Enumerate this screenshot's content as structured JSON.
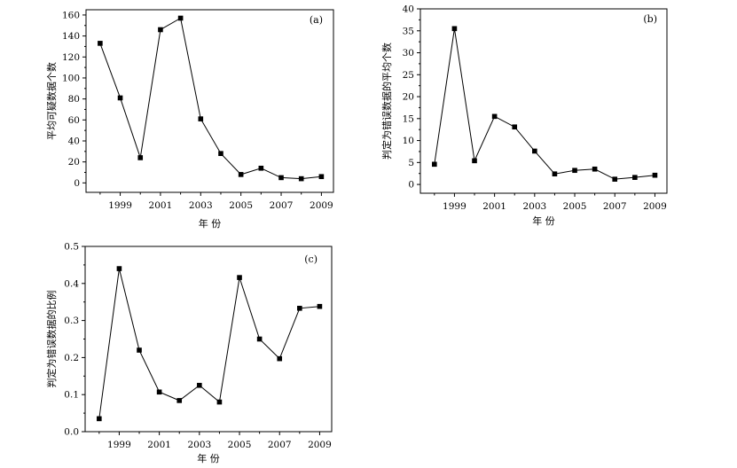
{
  "chart_data": [
    {
      "type": "line",
      "panel_label": "(a)",
      "title": "",
      "xlabel": "年  份",
      "ylabel": "平均可疑数据个数",
      "x": [
        1998,
        1999,
        2000,
        2001,
        2002,
        2003,
        2004,
        2005,
        2006,
        2007,
        2008,
        2009
      ],
      "values": [
        133,
        81,
        24,
        146,
        157,
        61,
        28,
        8,
        14,
        5,
        4,
        6
      ],
      "xlim": [
        1997.3,
        2009.6
      ],
      "ylim": [
        -9,
        165
      ],
      "xticks": [
        1999,
        2001,
        2003,
        2005,
        2007,
        2009
      ],
      "xtick_labels": [
        "1999",
        "2001",
        "2003",
        "2005",
        "2007",
        "2009"
      ],
      "yticks": [
        0,
        20,
        40,
        60,
        80,
        100,
        120,
        140,
        160
      ],
      "ytick_labels": [
        "0",
        "20",
        "40",
        "60",
        "80",
        "100",
        "120",
        "140",
        "160"
      ],
      "marker": "square",
      "grid": false
    },
    {
      "type": "line",
      "panel_label": "(b)",
      "title": "",
      "xlabel": "年  份",
      "ylabel": "判定为错误数据的平均个数",
      "x": [
        1998,
        1999,
        2000,
        2001,
        2002,
        2003,
        2004,
        2005,
        2006,
        2007,
        2008,
        2009
      ],
      "values": [
        4.6,
        35.5,
        5.4,
        15.5,
        13.1,
        7.6,
        2.4,
        3.2,
        3.5,
        1.2,
        1.6,
        2.1
      ],
      "xlim": [
        1997.3,
        2009.6
      ],
      "ylim": [
        -2,
        40
      ],
      "xticks": [
        1999,
        2001,
        2003,
        2005,
        2007,
        2009
      ],
      "xtick_labels": [
        "1999",
        "2001",
        "2003",
        "2005",
        "2007",
        "2009"
      ],
      "yticks": [
        0,
        5,
        10,
        15,
        20,
        25,
        30,
        35,
        40
      ],
      "ytick_labels": [
        "0",
        "5",
        "10",
        "15",
        "20",
        "25",
        "30",
        "35",
        "40"
      ],
      "marker": "square",
      "grid": false
    },
    {
      "type": "line",
      "panel_label": "(c)",
      "title": "",
      "xlabel": "年  份",
      "ylabel": "判定为错误数据的比例",
      "x": [
        1998,
        1999,
        2000,
        2001,
        2002,
        2003,
        2004,
        2005,
        2006,
        2007,
        2008,
        2009
      ],
      "values": [
        0.035,
        0.44,
        0.22,
        0.107,
        0.084,
        0.125,
        0.08,
        0.416,
        0.25,
        0.197,
        0.333,
        0.338
      ],
      "xlim": [
        1997.3,
        2009.6
      ],
      "ylim": [
        0,
        0.5
      ],
      "xticks": [
        1999,
        2001,
        2003,
        2005,
        2007,
        2009
      ],
      "xtick_labels": [
        "1999",
        "2001",
        "2003",
        "2005",
        "2007",
        "2009"
      ],
      "yticks": [
        0.0,
        0.1,
        0.2,
        0.3,
        0.4,
        0.5
      ],
      "ytick_labels": [
        "0.0",
        "0.1",
        "0.2",
        "0.3",
        "0.4",
        "0.5"
      ],
      "marker": "square",
      "grid": false
    }
  ]
}
